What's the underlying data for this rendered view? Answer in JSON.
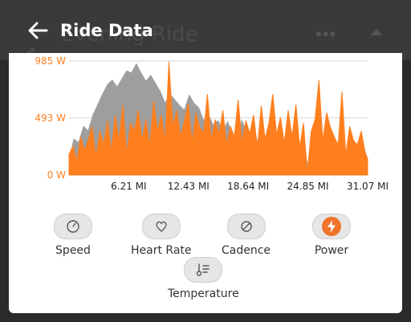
{
  "background": {
    "activity_title": "Evening Ride",
    "menu_glyph": "•••"
  },
  "sheet": {
    "title": "Ride Data",
    "back_icon": "arrow-left-icon"
  },
  "chart_data": {
    "type": "area",
    "title": "",
    "xlabel": "",
    "ylabel": "",
    "x_unit": "MI",
    "y_unit": "W",
    "xlim": [
      0,
      31.07
    ],
    "ylim": [
      0,
      985
    ],
    "x_ticks": [
      "6.21 MI",
      "12.43 MI",
      "18.64 MI",
      "24.85 MI",
      "31.07 MI"
    ],
    "x_tick_values": [
      6.21,
      12.43,
      18.64,
      24.85,
      31.07
    ],
    "y_ticks": [
      "985 W",
      "493 W",
      "0 W"
    ],
    "y_tick_values": [
      985,
      493,
      0
    ],
    "series": [
      {
        "color": "#9e9e9e",
        "x": [
          0,
          0.5,
          1,
          1.5,
          2,
          2.5,
          3,
          3.5,
          4,
          4.5,
          5,
          5.5,
          6,
          6.5,
          7,
          7.5,
          8,
          8.5,
          9,
          9.5,
          10,
          10.5,
          11,
          11.5,
          12,
          12.5,
          13,
          13.5,
          14,
          14.5,
          15,
          15.5,
          16,
          16.5,
          17,
          17.5,
          18,
          18.5,
          19,
          19.5,
          20,
          20.5,
          21,
          21.5,
          22,
          22.5,
          23,
          23.5,
          24,
          24.5,
          25,
          25.5,
          26,
          26.5,
          27,
          27.5,
          28,
          28.5,
          29,
          29.5,
          30,
          30.5,
          31.07
        ],
        "values": [
          120,
          310,
          280,
          420,
          380,
          520,
          610,
          700,
          780,
          820,
          760,
          830,
          900,
          880,
          960,
          880,
          810,
          860,
          790,
          720,
          620,
          700,
          650,
          600,
          560,
          690,
          620,
          580,
          470,
          520,
          430,
          470,
          380,
          460,
          340,
          300,
          470,
          360,
          310,
          260,
          420,
          320,
          280,
          250,
          230,
          300,
          260,
          200,
          270,
          180,
          60,
          190,
          160,
          230,
          210,
          170,
          130,
          150,
          140,
          120,
          110,
          90,
          50
        ]
      },
      {
        "color": "#ff7f1f",
        "x": [
          0,
          0.4,
          0.8,
          1.2,
          1.6,
          2,
          2.4,
          2.8,
          3.2,
          3.6,
          4,
          4.4,
          4.8,
          5.2,
          5.6,
          6,
          6.4,
          6.8,
          7.2,
          7.6,
          8,
          8.4,
          8.8,
          9.2,
          9.6,
          10,
          10.4,
          10.8,
          11.2,
          11.6,
          12,
          12.4,
          12.8,
          13.2,
          13.6,
          14,
          14.4,
          14.8,
          15.2,
          15.6,
          16,
          16.4,
          16.8,
          17.2,
          17.6,
          18,
          18.4,
          18.8,
          19.2,
          19.6,
          20,
          20.4,
          20.8,
          21.2,
          21.6,
          22,
          22.4,
          22.8,
          23.2,
          23.6,
          24,
          24.4,
          24.8,
          25.2,
          25.6,
          26,
          26.4,
          26.8,
          27.2,
          27.6,
          28,
          28.4,
          28.8,
          29.2,
          29.6,
          30,
          30.4,
          30.8,
          31.07
        ],
        "values": [
          180,
          250,
          120,
          330,
          210,
          300,
          420,
          150,
          380,
          260,
          470,
          200,
          520,
          300,
          610,
          180,
          450,
          380,
          560,
          300,
          480,
          250,
          640,
          380,
          520,
          290,
          980,
          420,
          560,
          330,
          470,
          620,
          280,
          540,
          410,
          360,
          700,
          300,
          480,
          350,
          560,
          260,
          420,
          330,
          650,
          280,
          470,
          360,
          520,
          240,
          600,
          310,
          450,
          700,
          350,
          500,
          280,
          560,
          330,
          610,
          240,
          450,
          20,
          380,
          480,
          820,
          300,
          540,
          410,
          330,
          260,
          720,
          180,
          420,
          300,
          260,
          380,
          200,
          140
        ]
      }
    ]
  },
  "metrics": [
    {
      "name": "speed",
      "label": "Speed",
      "icon": "speedometer-icon",
      "active": false
    },
    {
      "name": "heart-rate",
      "label": "Heart Rate",
      "icon": "heart-icon",
      "active": false
    },
    {
      "name": "cadence",
      "label": "Cadence",
      "icon": "cadence-icon",
      "active": false
    },
    {
      "name": "power",
      "label": "Power",
      "icon": "lightning-icon",
      "active": true
    },
    {
      "name": "temperature",
      "label": "Temperature",
      "icon": "thermometer-icon",
      "active": false
    }
  ],
  "colors": {
    "accent": "#ff7f1f",
    "power_badge": "#f0732a",
    "secondary_series": "#9e9e9e"
  }
}
